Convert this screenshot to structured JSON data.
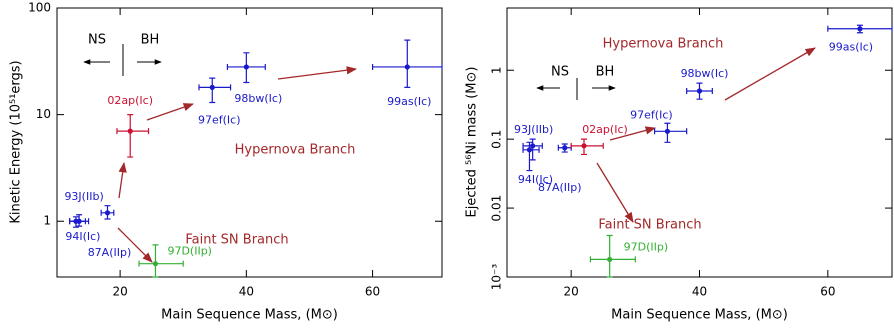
{
  "chart_data": [
    {
      "type": "scatter",
      "x_label": "Main Sequence Mass, (M⊙)",
      "y_label": "Kinetic Energy (10⁵¹ergs)",
      "log_y": true,
      "xlim": [
        10,
        71
      ],
      "xticks": [
        20,
        40,
        60
      ],
      "ylim": [
        0.3,
        100
      ],
      "yticks": [
        1,
        10,
        100
      ],
      "point_labels": [
        "93J(IIb)",
        "94I(Ic)",
        "87A(IIp)",
        "02ap(Ic)",
        "97ef(Ic)",
        "98bw(Ic)",
        "99as(Ic)",
        "97D(IIp)"
      ],
      "colors": [
        "#1a1acc",
        "#1a1acc",
        "#1a1acc",
        "#cc1030",
        "#1a1acc",
        "#1a1acc",
        "#1a1acc",
        "#33b033"
      ],
      "x": [
        13.5,
        13,
        18,
        21.6,
        34.6,
        40,
        65.5,
        25.6
      ],
      "values": [
        1.0,
        1.0,
        1.2,
        7,
        18,
        28,
        28,
        0.4
      ],
      "x_range": [
        [
          12,
          15
        ],
        [
          12,
          14.5
        ],
        [
          17,
          19
        ],
        [
          19.5,
          24.5
        ],
        [
          32.5,
          37.5
        ],
        [
          37,
          43
        ],
        [
          60,
          71
        ],
        [
          23,
          30
        ]
      ],
      "y_range": [
        [
          0.9,
          1.15
        ],
        [
          0.88,
          1.1
        ],
        [
          1.05,
          1.4
        ],
        [
          4,
          10
        ],
        [
          13,
          22
        ],
        [
          20,
          38
        ],
        [
          18,
          50
        ],
        [
          0.3,
          0.6
        ]
      ],
      "annotations": [
        {
          "text": "NS",
          "color": "#000000"
        },
        {
          "text": "BH",
          "color": "#000000"
        },
        {
          "text": "Hypernova Branch",
          "color": "#a3282a"
        },
        {
          "text": "Faint SN Branch",
          "color": "#a3282a"
        }
      ]
    },
    {
      "type": "scatter",
      "x_label": "Main Sequence Mass, (M⊙)",
      "y_label": "Ejected ⁵⁶Ni mass (M⊙)",
      "log_y": true,
      "xlim": [
        10,
        70
      ],
      "xticks": [
        20,
        40,
        60
      ],
      "ylim": [
        0.001,
        8
      ],
      "yticks": [
        {
          "value": 0.001,
          "label": "10⁻³"
        },
        0.01,
        0.1,
        1
      ],
      "point_labels": [
        "93J(IIb)",
        "94I(Ic)",
        "87A(IIp)",
        "02ap(Ic)",
        "97ef(Ic)",
        "98bw(Ic)",
        "99as(Ic)",
        "97D(IIp)"
      ],
      "colors": [
        "#1a1acc",
        "#1a1acc",
        "#1a1acc",
        "#cc1030",
        "#1a1acc",
        "#1a1acc",
        "#1a1acc",
        "#33b033"
      ],
      "x": [
        14,
        13.5,
        19,
        22,
        35,
        40,
        65,
        26
      ],
      "values": [
        0.08,
        0.07,
        0.075,
        0.08,
        0.13,
        0.5,
        4,
        0.0018
      ],
      "x_range": [
        [
          12.5,
          15.5
        ],
        [
          12.5,
          15
        ],
        [
          18,
          20
        ],
        [
          20,
          25
        ],
        [
          33,
          38
        ],
        [
          38,
          42
        ],
        [
          60,
          70
        ],
        [
          23,
          30
        ]
      ],
      "y_range": [
        [
          0.05,
          0.1
        ],
        [
          0.035,
          0.09
        ],
        [
          0.065,
          0.085
        ],
        [
          0.06,
          0.1
        ],
        [
          0.09,
          0.17
        ],
        [
          0.38,
          0.65
        ],
        [
          3.5,
          4.5
        ],
        [
          0.001,
          0.004
        ]
      ],
      "annotations": [
        {
          "text": "NS",
          "color": "#000000"
        },
        {
          "text": "BH",
          "color": "#000000"
        },
        {
          "text": "Hypernova Branch",
          "color": "#a3282a"
        },
        {
          "text": "Faint SN Branch",
          "color": "#a3282a"
        }
      ]
    }
  ]
}
